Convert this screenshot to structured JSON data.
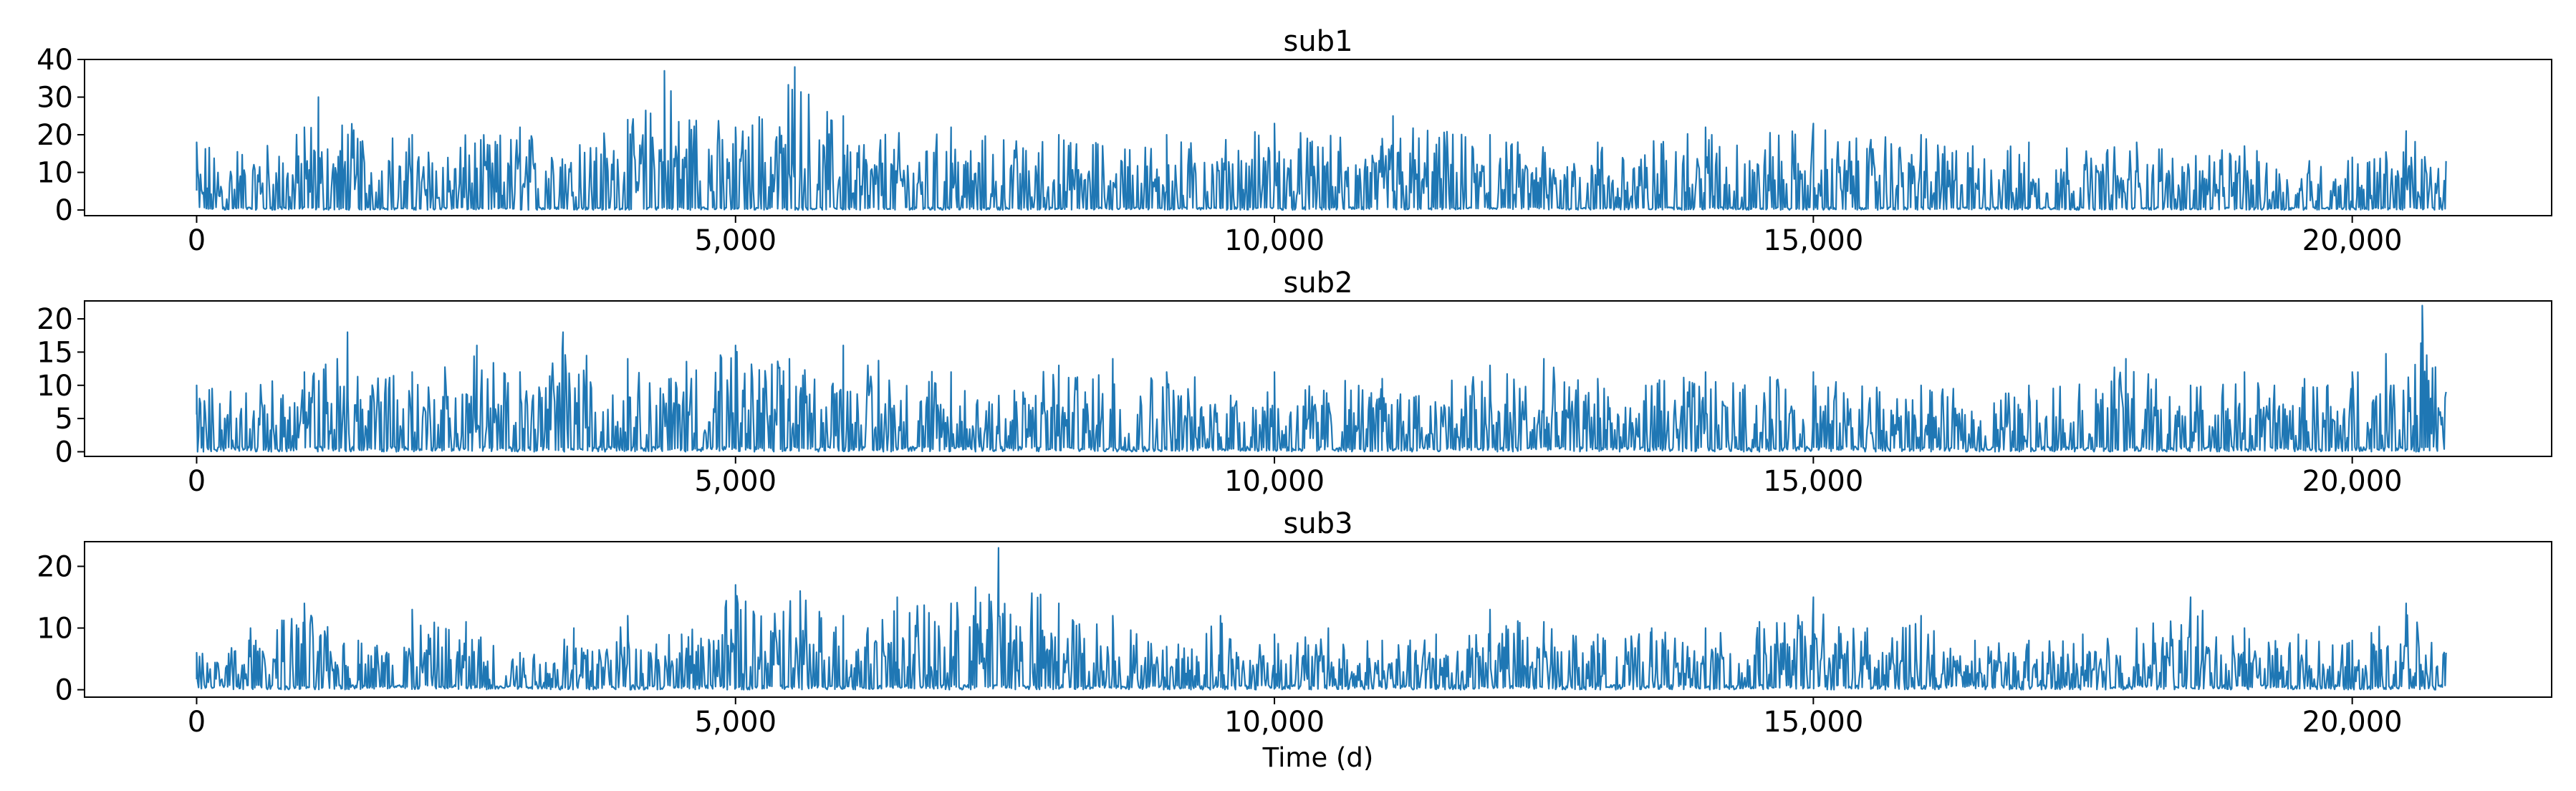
{
  "colors": {
    "series": "#1f77b4",
    "frame": "#000000",
    "background": "#ffffff"
  },
  "chart_data": [
    {
      "type": "line",
      "title": "sub1",
      "xlabel": "",
      "ylabel": "",
      "xlim": [
        -1040,
        21850
      ],
      "ylim": [
        -1.5,
        40
      ],
      "xticks": [
        0,
        5000,
        10000,
        15000,
        20000
      ],
      "xtick_labels": [
        "0",
        "5,000",
        "10,000",
        "15,000",
        "20,000"
      ],
      "yticks": [
        0,
        10,
        20,
        30,
        40
      ],
      "ytick_labels": [
        "0",
        "10",
        "20",
        "30",
        "40"
      ],
      "grid": false,
      "series": [
        {
          "x": [
            0,
            1000,
            1130,
            2000,
            3000,
            4000,
            4340,
            5000,
            5550,
            6000,
            7000,
            8000,
            9000,
            10000,
            11000,
            11100,
            12000,
            13000,
            14000,
            15000,
            16000,
            17000,
            18000,
            19000,
            20000,
            20500,
            20870
          ],
          "y": [
            18,
            22,
            30,
            20,
            22,
            24,
            37,
            22,
            38,
            25,
            22,
            20,
            20,
            23,
            19,
            25,
            20,
            18,
            22,
            23,
            20,
            18,
            18,
            17,
            14,
            21,
            13
          ]
        }
      ]
    },
    {
      "type": "line",
      "title": "sub2",
      "xlabel": "",
      "ylabel": "",
      "xlim": [
        -1040,
        21850
      ],
      "ylim": [
        -0.7,
        22.7
      ],
      "xticks": [
        0,
        5000,
        10000,
        15000,
        20000
      ],
      "xtick_labels": [
        "0",
        "5,000",
        "10,000",
        "15,000",
        "20,000"
      ],
      "yticks": [
        0,
        5,
        10,
        15,
        20
      ],
      "ytick_labels": [
        "0",
        "5",
        "10",
        "15",
        "20"
      ],
      "grid": false,
      "series": [
        {
          "x": [
            0,
            1000,
            1400,
            2000,
            2600,
            3000,
            3400,
            4000,
            5000,
            5500,
            6000,
            7000,
            8000,
            8500,
            9000,
            10000,
            11000,
            12000,
            12500,
            13000,
            14000,
            15000,
            16000,
            17000,
            17900,
            18500,
            19000,
            20000,
            20650,
            20870
          ],
          "y": [
            10,
            12,
            18,
            12,
            16,
            12,
            18,
            14,
            16,
            14,
            16,
            12,
            13,
            14,
            12,
            12,
            11,
            13,
            14,
            11,
            12,
            12,
            10,
            10,
            14,
            10,
            12,
            12,
            22,
            9
          ]
        }
      ]
    },
    {
      "type": "line",
      "title": "sub3",
      "xlabel": "Time (d)",
      "ylabel": "",
      "xlim": [
        -1040,
        21850
      ],
      "ylim": [
        -1.2,
        24
      ],
      "xticks": [
        0,
        5000,
        10000,
        15000,
        20000
      ],
      "xtick_labels": [
        "0",
        "5,000",
        "10,000",
        "15,000",
        "20,000"
      ],
      "yticks": [
        0,
        10,
        20
      ],
      "ytick_labels": [
        "0",
        "10",
        "20"
      ],
      "grid": false,
      "series": [
        {
          "x": [
            0,
            500,
            1000,
            1500,
            2000,
            2500,
            3000,
            3500,
            4000,
            4500,
            5000,
            5600,
            6000,
            6500,
            7000,
            7440,
            8000,
            8500,
            9000,
            9500,
            10000,
            10500,
            11000,
            11500,
            12000,
            12500,
            13000,
            13500,
            14000,
            14500,
            15000,
            15500,
            16000,
            16500,
            17000,
            17500,
            18000,
            18500,
            19000,
            19500,
            20000,
            20500,
            20870
          ],
          "y": [
            6,
            10,
            14,
            8,
            13,
            11,
            6,
            10,
            12,
            9,
            17,
            16,
            12,
            15,
            14,
            23,
            14,
            12,
            7,
            12,
            9,
            10,
            8,
            9,
            13,
            11,
            9,
            10,
            10,
            11,
            15,
            10,
            12,
            8,
            8,
            9,
            10,
            15,
            10,
            9,
            8,
            14,
            6
          ]
        }
      ]
    }
  ]
}
